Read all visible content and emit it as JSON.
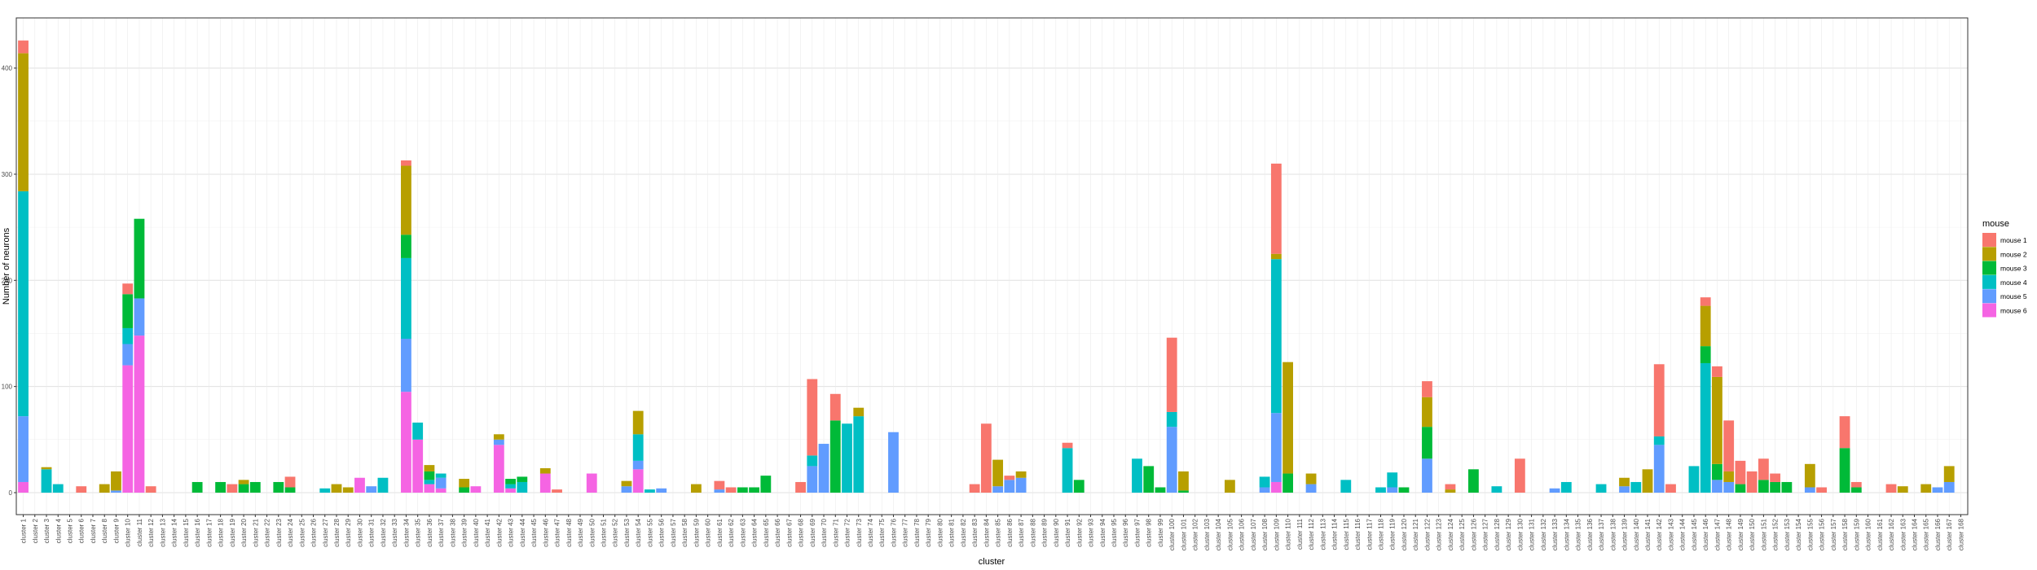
{
  "chart_data": {
    "type": "bar",
    "stacked": true,
    "title": "",
    "xlabel": "cluster",
    "ylabel": "Number of neurons",
    "ylim": [
      0,
      450
    ],
    "yticks": [
      0,
      100,
      200,
      300,
      400
    ],
    "grid": true,
    "legend": {
      "title": "mouse",
      "position": "right"
    },
    "categories": [
      "cluster 1",
      "cluster 2",
      "cluster 3",
      "cluster 4",
      "cluster 5",
      "cluster 6",
      "cluster 7",
      "cluster 8",
      "cluster 9",
      "cluster 10",
      "cluster 11",
      "cluster 12",
      "cluster 13",
      "cluster 14",
      "cluster 15",
      "cluster 16",
      "cluster 17",
      "cluster 18",
      "cluster 19",
      "cluster 20",
      "cluster 21",
      "cluster 22",
      "cluster 23",
      "cluster 24",
      "cluster 25",
      "cluster 26",
      "cluster 27",
      "cluster 28",
      "cluster 29",
      "cluster 30",
      "cluster 31",
      "cluster 32",
      "cluster 33",
      "cluster 34",
      "cluster 35",
      "cluster 36",
      "cluster 37",
      "cluster 38",
      "cluster 39",
      "cluster 40",
      "cluster 41",
      "cluster 42",
      "cluster 43",
      "cluster 44",
      "cluster 45",
      "cluster 46",
      "cluster 47",
      "cluster 48",
      "cluster 49",
      "cluster 50",
      "cluster 51",
      "cluster 52",
      "cluster 53",
      "cluster 54",
      "cluster 55",
      "cluster 56",
      "cluster 57",
      "cluster 58",
      "cluster 59",
      "cluster 60",
      "cluster 61",
      "cluster 62",
      "cluster 63",
      "cluster 64",
      "cluster 65",
      "cluster 66",
      "cluster 67",
      "cluster 68",
      "cluster 69",
      "cluster 70",
      "cluster 71",
      "cluster 72",
      "cluster 73",
      "cluster 74",
      "cluster 75",
      "cluster 76",
      "cluster 77",
      "cluster 78",
      "cluster 79",
      "cluster 80",
      "cluster 81",
      "cluster 82",
      "cluster 83",
      "cluster 84",
      "cluster 85",
      "cluster 86",
      "cluster 87",
      "cluster 88",
      "cluster 89",
      "cluster 90",
      "cluster 91",
      "cluster 92",
      "cluster 93",
      "cluster 94",
      "cluster 95",
      "cluster 96",
      "cluster 97",
      "cluster 98",
      "cluster 99",
      "cluster 100",
      "cluster 101",
      "cluster 102",
      "cluster 103",
      "cluster 104",
      "cluster 105",
      "cluster 106",
      "cluster 107",
      "cluster 108",
      "cluster 109",
      "cluster 110",
      "cluster 111",
      "cluster 112",
      "cluster 113",
      "cluster 114",
      "cluster 115",
      "cluster 116",
      "cluster 117",
      "cluster 118",
      "cluster 119",
      "cluster 120",
      "cluster 121",
      "cluster 122",
      "cluster 123",
      "cluster 124",
      "cluster 125",
      "cluster 126",
      "cluster 127",
      "cluster 128",
      "cluster 129",
      "cluster 130",
      "cluster 131",
      "cluster 132",
      "cluster 133",
      "cluster 134",
      "cluster 135",
      "cluster 136",
      "cluster 137",
      "cluster 138",
      "cluster 139",
      "cluster 140",
      "cluster 141",
      "cluster 142",
      "cluster 143",
      "cluster 144",
      "cluster 145",
      "cluster 146",
      "cluster 147",
      "cluster 148",
      "cluster 149",
      "cluster 150",
      "cluster 151",
      "cluster 152",
      "cluster 153",
      "cluster 154",
      "cluster 155",
      "cluster 156",
      "cluster 157",
      "cluster 158",
      "cluster 159",
      "cluster 160",
      "cluster 161",
      "cluster 162",
      "cluster 163",
      "cluster 164",
      "cluster 165",
      "cluster 166",
      "cluster 167",
      "cluster 168"
    ],
    "series": [
      {
        "name": "mouse 6",
        "color": "#F564E3",
        "values": [
          10,
          0,
          0,
          0,
          0,
          0,
          0,
          0,
          0,
          120,
          148,
          0,
          0,
          0,
          0,
          0,
          0,
          0,
          0,
          0,
          0,
          0,
          0,
          0,
          0,
          0,
          0,
          0,
          0,
          14,
          0,
          0,
          0,
          95,
          50,
          8,
          4,
          0,
          0,
          6,
          0,
          45,
          4,
          0,
          0,
          18,
          0,
          0,
          0,
          18,
          0,
          0,
          0,
          22,
          0,
          0,
          0,
          0,
          0,
          0,
          0,
          0,
          0,
          0,
          0,
          0,
          0,
          0,
          0,
          0,
          0,
          0,
          0,
          0,
          0,
          0,
          0,
          0,
          0,
          0,
          0,
          0,
          0,
          0,
          0,
          0,
          0,
          0,
          0,
          0,
          0,
          0,
          0,
          0,
          0,
          0,
          0,
          0,
          0,
          0,
          0,
          0,
          0,
          0,
          0,
          0,
          0,
          0,
          10,
          0,
          0,
          0,
          0,
          0,
          0,
          0,
          0,
          0,
          0,
          0,
          0,
          0,
          0,
          0,
          0,
          0,
          0,
          0,
          0,
          0,
          0,
          0,
          0,
          0,
          0,
          0,
          0,
          0,
          0,
          0,
          0,
          0,
          0,
          0,
          0,
          0,
          0,
          0,
          0,
          0,
          0,
          0,
          0,
          0,
          0,
          0,
          0,
          0,
          0,
          0,
          0,
          0,
          0,
          0,
          0,
          0,
          0,
          0
        ]
      },
      {
        "name": "mouse 5",
        "color": "#619CFF",
        "values": [
          62,
          0,
          0,
          0,
          0,
          0,
          0,
          0,
          2,
          20,
          35,
          0,
          0,
          0,
          0,
          0,
          0,
          0,
          0,
          0,
          0,
          0,
          0,
          0,
          0,
          0,
          0,
          0,
          0,
          0,
          6,
          0,
          0,
          50,
          0,
          0,
          10,
          0,
          0,
          0,
          0,
          5,
          0,
          0,
          0,
          0,
          0,
          0,
          0,
          0,
          0,
          0,
          6,
          8,
          0,
          4,
          0,
          0,
          0,
          0,
          3,
          0,
          0,
          0,
          0,
          0,
          0,
          0,
          25,
          46,
          0,
          0,
          0,
          0,
          0,
          57,
          0,
          0,
          0,
          0,
          0,
          0,
          0,
          0,
          6,
          12,
          14,
          0,
          0,
          0,
          0,
          0,
          0,
          0,
          0,
          0,
          0,
          0,
          0,
          62,
          0,
          0,
          0,
          0,
          0,
          0,
          0,
          5,
          65,
          0,
          0,
          8,
          0,
          0,
          0,
          0,
          0,
          0,
          5,
          0,
          0,
          32,
          0,
          0,
          0,
          0,
          0,
          0,
          0,
          0,
          0,
          0,
          4,
          0,
          0,
          0,
          0,
          0,
          6,
          0,
          0,
          45,
          0,
          0,
          0,
          0,
          12,
          10,
          0,
          0,
          0,
          0,
          0,
          0,
          5,
          0,
          0,
          0,
          0,
          0,
          0,
          0,
          0,
          0,
          0,
          5,
          10,
          0
        ]
      },
      {
        "name": "mouse 4",
        "color": "#00BFC4",
        "values": [
          212,
          0,
          22,
          8,
          0,
          0,
          0,
          0,
          0,
          15,
          0,
          0,
          0,
          0,
          0,
          0,
          0,
          0,
          0,
          0,
          0,
          0,
          0,
          0,
          0,
          0,
          4,
          0,
          0,
          0,
          0,
          14,
          0,
          76,
          16,
          4,
          4,
          0,
          0,
          0,
          0,
          0,
          4,
          10,
          0,
          0,
          0,
          0,
          0,
          0,
          0,
          0,
          0,
          25,
          3,
          0,
          0,
          0,
          0,
          0,
          0,
          0,
          0,
          0,
          0,
          0,
          0,
          0,
          10,
          0,
          0,
          65,
          72,
          0,
          0,
          0,
          0,
          0,
          0,
          0,
          0,
          0,
          0,
          0,
          0,
          0,
          0,
          0,
          0,
          0,
          42,
          0,
          0,
          0,
          0,
          0,
          32,
          0,
          0,
          14,
          0,
          0,
          0,
          0,
          0,
          0,
          0,
          10,
          145,
          0,
          0,
          0,
          0,
          0,
          12,
          0,
          0,
          5,
          14,
          0,
          0,
          0,
          0,
          0,
          0,
          0,
          0,
          6,
          0,
          0,
          0,
          0,
          0,
          10,
          0,
          0,
          8,
          0,
          0,
          10,
          0,
          8,
          0,
          0,
          25,
          122,
          0,
          0,
          0,
          0,
          0,
          0,
          0,
          0,
          0,
          0,
          0,
          0,
          0,
          0,
          0,
          0,
          0,
          0,
          0,
          0,
          0,
          0
        ]
      },
      {
        "name": "mouse 3",
        "color": "#00BA38",
        "values": [
          0,
          0,
          0,
          0,
          0,
          0,
          0,
          0,
          0,
          32,
          75,
          0,
          0,
          0,
          0,
          10,
          0,
          10,
          0,
          8,
          10,
          0,
          10,
          5,
          0,
          0,
          0,
          0,
          0,
          0,
          0,
          0,
          0,
          22,
          0,
          8,
          0,
          0,
          5,
          0,
          0,
          0,
          5,
          5,
          0,
          0,
          0,
          0,
          0,
          0,
          0,
          0,
          0,
          0,
          0,
          0,
          0,
          0,
          0,
          0,
          0,
          0,
          5,
          5,
          16,
          0,
          0,
          0,
          0,
          0,
          68,
          0,
          0,
          0,
          0,
          0,
          0,
          0,
          0,
          0,
          0,
          0,
          0,
          0,
          0,
          0,
          0,
          0,
          0,
          0,
          0,
          12,
          0,
          0,
          0,
          0,
          0,
          25,
          5,
          0,
          2,
          0,
          0,
          0,
          0,
          0,
          0,
          0,
          0,
          18,
          0,
          0,
          0,
          0,
          0,
          0,
          0,
          0,
          0,
          5,
          0,
          30,
          0,
          0,
          0,
          22,
          0,
          0,
          0,
          0,
          0,
          0,
          0,
          0,
          0,
          0,
          0,
          0,
          0,
          0,
          0,
          0,
          0,
          0,
          0,
          16,
          15,
          0,
          8,
          0,
          12,
          10,
          10,
          0,
          0,
          0,
          0,
          42,
          5,
          0,
          0,
          0,
          0,
          0,
          0,
          0,
          0,
          0
        ]
      },
      {
        "name": "mouse 2",
        "color": "#B79F00",
        "values": [
          130,
          0,
          2,
          0,
          0,
          0,
          0,
          8,
          18,
          0,
          0,
          0,
          0,
          0,
          0,
          0,
          0,
          0,
          0,
          4,
          0,
          0,
          0,
          0,
          0,
          0,
          0,
          8,
          5,
          0,
          0,
          0,
          0,
          65,
          0,
          6,
          0,
          0,
          8,
          0,
          0,
          5,
          0,
          0,
          0,
          5,
          0,
          0,
          0,
          0,
          0,
          0,
          5,
          22,
          0,
          0,
          0,
          0,
          8,
          0,
          0,
          0,
          0,
          0,
          0,
          0,
          0,
          0,
          0,
          0,
          0,
          0,
          8,
          0,
          0,
          0,
          0,
          0,
          0,
          0,
          0,
          0,
          0,
          0,
          25,
          0,
          6,
          0,
          0,
          0,
          0,
          0,
          0,
          0,
          0,
          0,
          0,
          0,
          0,
          0,
          18,
          0,
          0,
          0,
          12,
          0,
          0,
          0,
          5,
          105,
          0,
          10,
          0,
          0,
          0,
          0,
          0,
          0,
          0,
          0,
          0,
          28,
          0,
          3,
          0,
          0,
          0,
          0,
          0,
          0,
          0,
          0,
          0,
          0,
          0,
          0,
          0,
          0,
          8,
          0,
          22,
          0,
          0,
          0,
          0,
          38,
          82,
          10,
          0,
          0,
          0,
          0,
          0,
          0,
          22,
          0,
          0,
          0,
          0,
          0,
          0,
          0,
          6,
          0,
          8,
          0,
          15,
          0
        ]
      },
      {
        "name": "mouse 1",
        "color": "#F8766D",
        "values": [
          12,
          0,
          0,
          0,
          0,
          6,
          0,
          0,
          0,
          10,
          0,
          6,
          0,
          0,
          0,
          0,
          0,
          0,
          8,
          0,
          0,
          0,
          0,
          10,
          0,
          0,
          0,
          0,
          0,
          0,
          0,
          0,
          0,
          5,
          0,
          0,
          0,
          0,
          0,
          0,
          0,
          0,
          0,
          0,
          0,
          0,
          3,
          0,
          0,
          0,
          0,
          0,
          0,
          0,
          0,
          0,
          0,
          0,
          0,
          0,
          8,
          5,
          0,
          0,
          0,
          0,
          0,
          10,
          72,
          0,
          25,
          0,
          0,
          0,
          0,
          0,
          0,
          0,
          0,
          0,
          0,
          0,
          8,
          65,
          0,
          4,
          0,
          0,
          0,
          0,
          5,
          0,
          0,
          0,
          0,
          0,
          0,
          0,
          0,
          70,
          0,
          0,
          0,
          0,
          0,
          0,
          0,
          0,
          85,
          0,
          0,
          0,
          0,
          0,
          0,
          0,
          0,
          0,
          0,
          0,
          0,
          15,
          0,
          5,
          0,
          0,
          0,
          0,
          0,
          32,
          0,
          0,
          0,
          0,
          0,
          0,
          0,
          0,
          0,
          0,
          0,
          68,
          8,
          0,
          0,
          8,
          10,
          48,
          22,
          20,
          20,
          8,
          0,
          0,
          0,
          5,
          0,
          30,
          5,
          0,
          0,
          8,
          0,
          0,
          0,
          0,
          0,
          0
        ]
      }
    ]
  }
}
